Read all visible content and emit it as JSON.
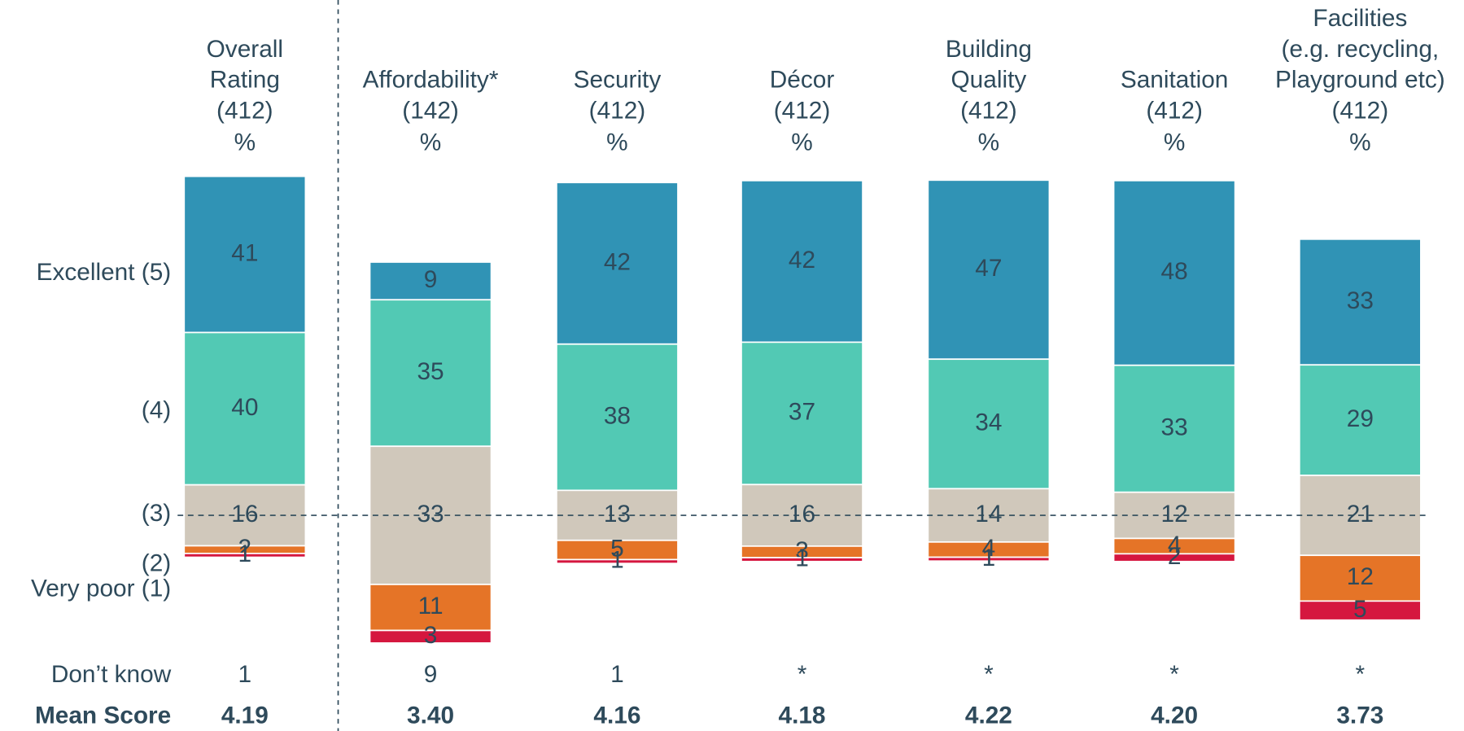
{
  "chart_data": {
    "type": "diverging_stacked_bar",
    "categories": [
      [
        "Overall",
        "Rating"
      ],
      [
        "Affordability*"
      ],
      [
        "Security"
      ],
      [
        "Décor"
      ],
      [
        "Building",
        "Quality"
      ],
      [
        "Sanitation"
      ],
      [
        "Facilities",
        "(e.g. recycling,",
        "Playground etc)"
      ]
    ],
    "bases": [
      "(412)",
      "(142)",
      "(412)",
      "(412)",
      "(412)",
      "(412)",
      "(412)"
    ],
    "unit_label": "%",
    "series": [
      {
        "name": "Excellent (5)",
        "color": "#3093b5",
        "values": [
          41,
          9,
          42,
          42,
          47,
          48,
          33
        ]
      },
      {
        "name": "(4)",
        "color": "#52c9b4",
        "values": [
          40,
          35,
          38,
          37,
          34,
          33,
          29
        ]
      },
      {
        "name": "(3)",
        "color": "#d0c8bb",
        "values": [
          16,
          33,
          13,
          16,
          14,
          12,
          21
        ]
      },
      {
        "name": "(2)",
        "color": "#e57427",
        "values": [
          2,
          11,
          5,
          3,
          4,
          4,
          12
        ]
      },
      {
        "name": "Very poor (1)",
        "color": "#d5173f",
        "values": [
          1,
          3,
          1,
          1,
          1,
          2,
          5
        ]
      }
    ],
    "dont_know": {
      "label": "Don’t know",
      "values": [
        "1",
        "9",
        "1",
        "*",
        "*",
        "*",
        "*"
      ]
    },
    "mean_score": {
      "label": "Mean Score",
      "values": [
        4.19,
        3.4,
        4.16,
        4.18,
        4.22,
        4.2,
        3.73
      ],
      "value_labels": [
        "4.19",
        "3.40",
        "4.16",
        "4.18",
        "4.22",
        "4.20",
        "3.73"
      ]
    }
  }
}
